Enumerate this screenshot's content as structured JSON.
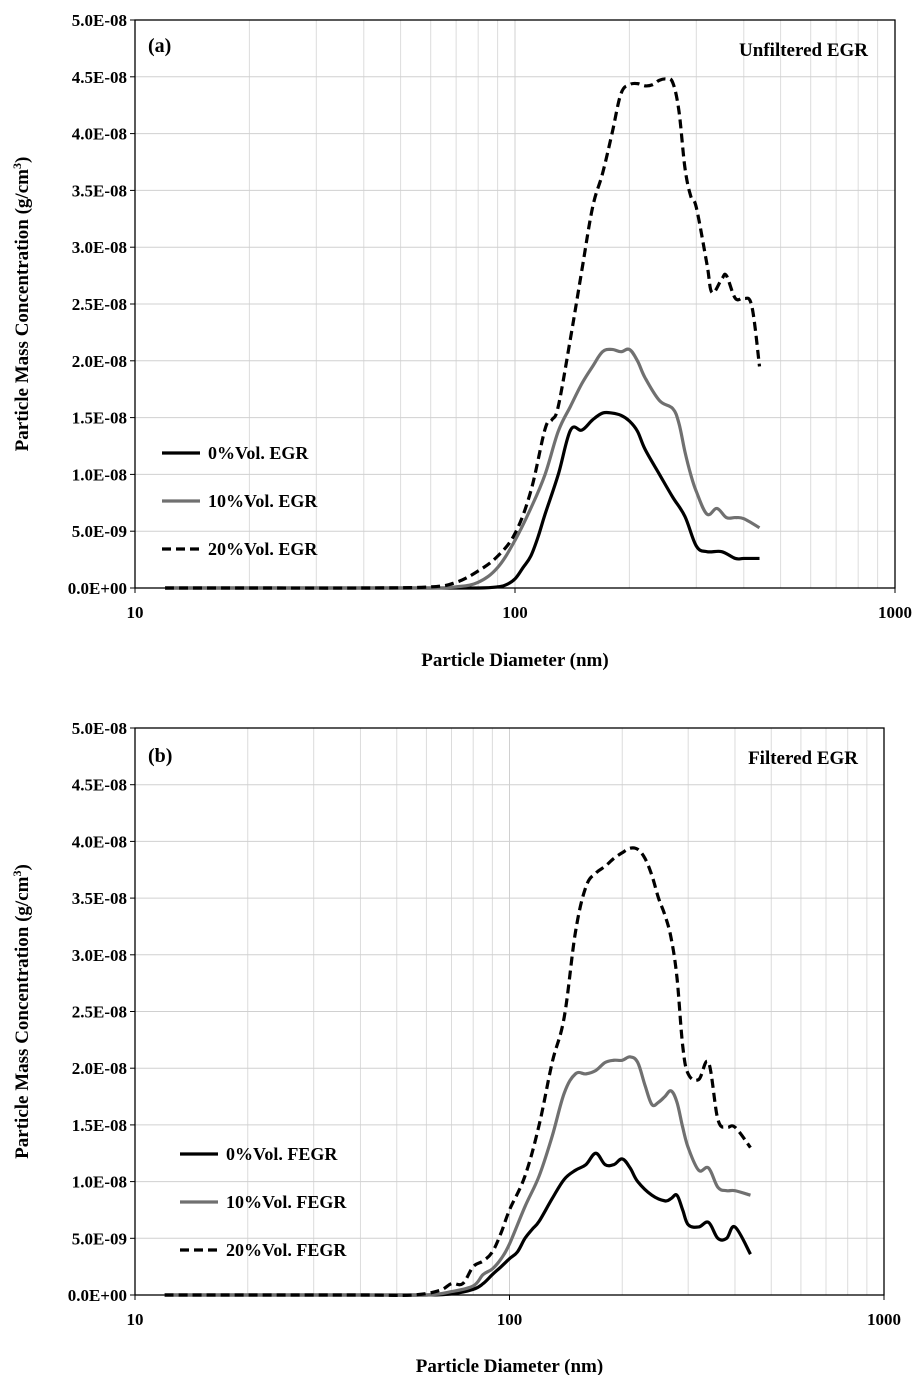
{
  "chart_data": [
    {
      "type": "line",
      "panel_label": "(a)",
      "annotation": "Unfiltered EGR",
      "xlabel": "Particle Diameter  (nm)",
      "ylabel": "Particle Mass Concentration (g/cm",
      "ylabel_sup": "3",
      "ylabel_close": ")",
      "x_scale": "log",
      "xlim": [
        10,
        1000
      ],
      "ylim": [
        0,
        5e-08
      ],
      "xticks": [
        "10",
        "100",
        "1000"
      ],
      "yticks": [
        "0.0E+00",
        "5.0E-09",
        "1.0E-08",
        "1.5E-08",
        "2.0E-08",
        "2.5E-08",
        "3.0E-08",
        "3.5E-08",
        "4.0E-08",
        "4.5E-08",
        "5.0E-08"
      ],
      "grid": true,
      "legend_position": "middle-left",
      "series": [
        {
          "name": "0%Vol. EGR",
          "color": "#000000",
          "dash": "solid",
          "x": [
            12,
            20,
            40,
            60,
            80,
            90,
            95,
            100,
            105,
            110,
            115,
            120,
            130,
            140,
            150,
            160,
            170,
            180,
            190,
            200,
            210,
            220,
            240,
            260,
            280,
            300,
            320,
            350,
            380,
            400,
            440
          ],
          "y": [
            0,
            0,
            0,
            0,
            0,
            1e-10,
            3e-10,
            8e-10,
            1.8e-09,
            2.8e-09,
            4.5e-09,
            6.5e-09,
            1e-08,
            1.39e-08,
            1.39e-08,
            1.48e-08,
            1.54e-08,
            1.54e-08,
            1.52e-08,
            1.47e-08,
            1.38e-08,
            1.22e-08,
            1e-08,
            8e-09,
            6.3e-09,
            3.7e-09,
            3.2e-09,
            3.2e-09,
            2.6e-09,
            2.6e-09,
            2.6e-09
          ]
        },
        {
          "name": "10%Vol. EGR",
          "color": "#707070",
          "dash": "solid",
          "x": [
            12,
            20,
            40,
            60,
            70,
            80,
            90,
            100,
            110,
            120,
            130,
            140,
            150,
            160,
            170,
            180,
            190,
            200,
            210,
            220,
            240,
            260,
            270,
            280,
            290,
            300,
            320,
            340,
            360,
            380,
            400,
            440
          ],
          "y": [
            0,
            0,
            0,
            0,
            1e-10,
            5e-10,
            1.8e-09,
            4.2e-09,
            7e-09,
            1e-08,
            1.38e-08,
            1.6e-08,
            1.8e-08,
            1.95e-08,
            2.08e-08,
            2.1e-08,
            2.08e-08,
            2.1e-08,
            2e-08,
            1.85e-08,
            1.65e-08,
            1.58e-08,
            1.45e-08,
            1.2e-08,
            1e-08,
            8.5e-09,
            6.5e-09,
            7e-09,
            6.2e-09,
            6.2e-09,
            6.1e-09,
            5.3e-09
          ]
        },
        {
          "name": "20%Vol. EGR",
          "color": "#000000",
          "dash": "dashed",
          "x": [
            12,
            20,
            40,
            60,
            70,
            80,
            90,
            100,
            110,
            120,
            125,
            130,
            140,
            150,
            160,
            170,
            180,
            190,
            200,
            210,
            220,
            230,
            240,
            250,
            260,
            270,
            280,
            290,
            300,
            320,
            330,
            350,
            360,
            380,
            400,
            420,
            440
          ],
          "y": [
            0,
            0,
            0,
            1e-10,
            5e-10,
            1.5e-09,
            2.8e-09,
            4.8e-09,
            8.5e-09,
            1.4e-08,
            1.48e-08,
            1.6e-08,
            2.2e-08,
            2.8e-08,
            3.35e-08,
            3.65e-08,
            4e-08,
            4.35e-08,
            4.43e-08,
            4.44e-08,
            4.42e-08,
            4.43e-08,
            4.47e-08,
            4.48e-08,
            4.45e-08,
            4.2e-08,
            3.7e-08,
            3.45e-08,
            3.35e-08,
            2.85e-08,
            2.6e-08,
            2.72e-08,
            2.75e-08,
            2.55e-08,
            2.55e-08,
            2.48e-08,
            1.95e-08
          ]
        }
      ]
    },
    {
      "type": "line",
      "panel_label": "(b)",
      "annotation": "Filtered EGR",
      "xlabel": "Particle Diameter  (nm)",
      "ylabel": "Particle Mass Concentration (g/cm",
      "ylabel_sup": "3",
      "ylabel_close": ")",
      "x_scale": "log",
      "xlim": [
        10,
        1000
      ],
      "ylim": [
        0,
        5e-08
      ],
      "xticks": [
        "10",
        "100",
        "1000"
      ],
      "yticks": [
        "0.0E+00",
        "5.0E-09",
        "1.0E-08",
        "1.5E-08",
        "2.0E-08",
        "2.5E-08",
        "3.0E-08",
        "3.5E-08",
        "4.0E-08",
        "4.5E-08",
        "5.0E-08"
      ],
      "grid": true,
      "legend_position": "middle-left",
      "series": [
        {
          "name": "0%Vol. FEGR",
          "color": "#000000",
          "dash": "solid",
          "x": [
            12,
            20,
            40,
            60,
            70,
            80,
            85,
            90,
            95,
            100,
            105,
            110,
            115,
            120,
            130,
            140,
            150,
            160,
            170,
            180,
            190,
            200,
            210,
            220,
            240,
            260,
            270,
            280,
            290,
            300,
            320,
            340,
            360,
            380,
            400,
            440
          ],
          "y": [
            0,
            0,
            0,
            0,
            1e-10,
            5e-10,
            1e-09,
            1.8e-09,
            2.5e-09,
            3.2e-09,
            3.8e-09,
            5e-09,
            5.8e-09,
            6.5e-09,
            8.5e-09,
            1.02e-08,
            1.1e-08,
            1.15e-08,
            1.25e-08,
            1.15e-08,
            1.15e-08,
            1.2e-08,
            1.12e-08,
            1e-08,
            8.8e-09,
            8.3e-09,
            8.5e-09,
            8.8e-09,
            7.5e-09,
            6.2e-09,
            6e-09,
            6.4e-09,
            5e-09,
            5e-09,
            6e-09,
            3.6e-09
          ]
        },
        {
          "name": "10%Vol. FEGR",
          "color": "#707070",
          "dash": "solid",
          "x": [
            12,
            20,
            40,
            60,
            70,
            80,
            85,
            90,
            95,
            100,
            110,
            120,
            130,
            140,
            150,
            160,
            170,
            180,
            190,
            200,
            210,
            220,
            230,
            240,
            250,
            260,
            270,
            280,
            290,
            300,
            320,
            340,
            360,
            380,
            400,
            440
          ],
          "y": [
            0,
            0,
            0,
            0,
            3e-10,
            8e-10,
            1.8e-09,
            2.3e-09,
            3.2e-09,
            4.5e-09,
            7.8e-09,
            1.05e-08,
            1.4e-08,
            1.78e-08,
            1.95e-08,
            1.95e-08,
            1.98e-08,
            2.05e-08,
            2.07e-08,
            2.07e-08,
            2.1e-08,
            2.05e-08,
            1.85e-08,
            1.68e-08,
            1.7e-08,
            1.75e-08,
            1.8e-08,
            1.7e-08,
            1.48e-08,
            1.3e-08,
            1.1e-08,
            1.12e-08,
            9.5e-09,
            9.2e-09,
            9.2e-09,
            8.8e-09
          ]
        },
        {
          "name": "20%Vol. FEGR",
          "color": "#000000",
          "dash": "dashed",
          "x": [
            12,
            20,
            40,
            55,
            65,
            70,
            75,
            80,
            85,
            90,
            95,
            100,
            110,
            120,
            130,
            140,
            150,
            160,
            170,
            180,
            190,
            200,
            210,
            220,
            230,
            240,
            250,
            260,
            270,
            280,
            290,
            300,
            320,
            340,
            360,
            380,
            400,
            440
          ],
          "y": [
            0,
            0,
            0,
            0,
            4e-10,
            1e-09,
            1e-09,
            2.5e-09,
            3e-09,
            3.8e-09,
            5.5e-09,
            7.5e-09,
            1.05e-08,
            1.5e-08,
            2.05e-08,
            2.45e-08,
            3.2e-08,
            3.6e-08,
            3.72e-08,
            3.78e-08,
            3.85e-08,
            3.9e-08,
            3.94e-08,
            3.93e-08,
            3.85e-08,
            3.7e-08,
            3.5e-08,
            3.35e-08,
            3.15e-08,
            2.8e-08,
            2.2e-08,
            1.95e-08,
            1.9e-08,
            2.05e-08,
            1.55e-08,
            1.48e-08,
            1.48e-08,
            1.3e-08
          ]
        }
      ]
    }
  ]
}
